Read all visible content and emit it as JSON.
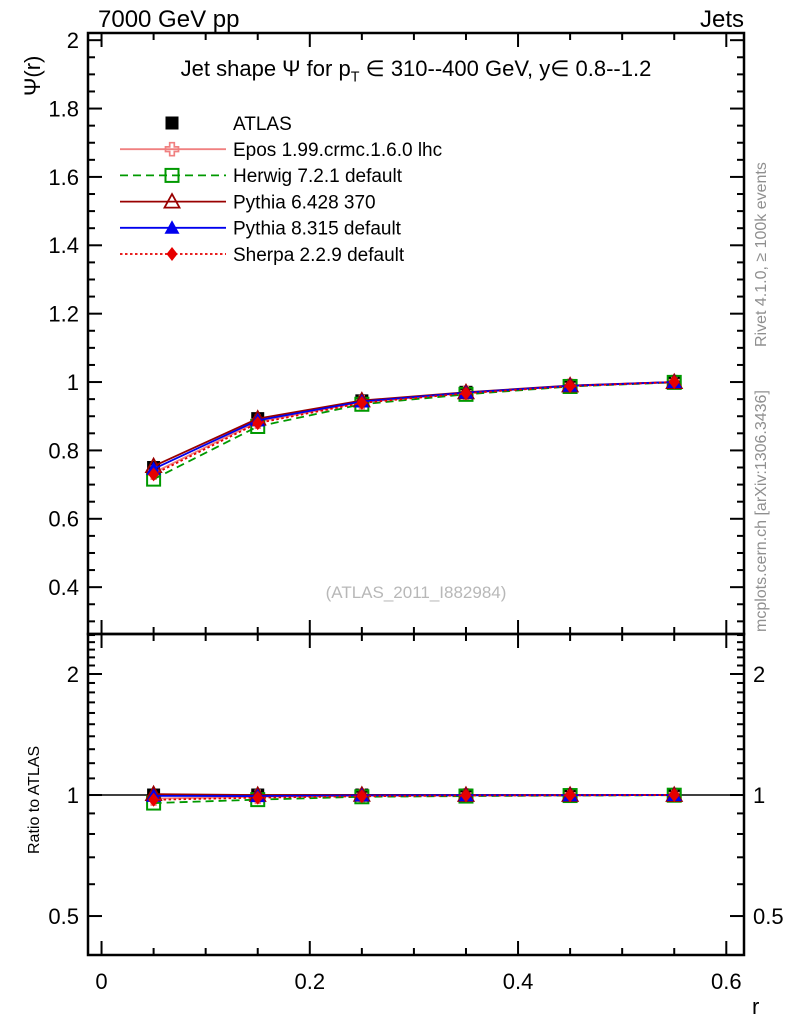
{
  "header": {
    "left": "7000 GeV pp",
    "right": "Jets"
  },
  "title": {
    "prefix": "Jet shape Ψ for p",
    "sub": "T",
    "suffix": " ∈ 310--400 GeV, y∈ 0.8--1.2"
  },
  "watermark": "(ATLAS_2011_I882984)",
  "side_notes": {
    "top": "Rivet 4.1.0, ≥ 100k events",
    "bottom": "mcplots.cern.ch [arXiv:1306.3436]"
  },
  "chart_data": {
    "type": "line",
    "title": "Jet shape Ψ for pT ∈ 310--400 GeV, y ∈ 0.8--1.2",
    "xlabel": "r",
    "ylabel": "Ψ(r)",
    "ratio_ylabel": "Ratio to ATLAS",
    "legend_position": "top-left",
    "grid": false,
    "x": [
      0.05,
      0.15,
      0.25,
      0.35,
      0.45,
      0.55
    ],
    "xlim": [
      -0.013,
      0.617
    ],
    "main_ylim": [
      0.263,
      2.021
    ],
    "main_yscale": "linear",
    "ratio_ylim": [
      0.4,
      2.515
    ],
    "ratio_yscale": "log",
    "ratio_reference": 1,
    "x_ticks": {
      "major": [
        0,
        0.2,
        0.4,
        0.6
      ],
      "labels": [
        "0",
        "0.2",
        "0.4",
        "0.6"
      ],
      "minor_step": 0.05,
      "minor_range": [
        0.05,
        0.6
      ]
    },
    "main_yticks": {
      "major": [
        0.4,
        0.6,
        0.8,
        1.0,
        1.2,
        1.4,
        1.6,
        1.8,
        2.0
      ],
      "labels": [
        "0.4",
        "0.6",
        "0.8",
        "1",
        "1.2",
        "1.4",
        "1.6",
        "1.8",
        "2"
      ],
      "minor_step": 0.05,
      "minor_range": [
        0.3,
        2.0
      ]
    },
    "ratio_yticks": {
      "major": [
        0.5,
        1,
        2
      ],
      "labels": [
        "0.5",
        "1",
        "2"
      ],
      "minor": [
        0.4,
        0.6,
        0.7,
        0.8,
        0.9,
        1.1,
        1.2,
        1.3,
        1.4,
        1.5,
        1.6,
        1.7,
        1.8,
        1.9,
        2.1,
        2.2,
        2.3,
        2.4,
        2.5
      ]
    },
    "series": [
      {
        "name": "ATLAS",
        "color": "#000000",
        "marker": "square-filled",
        "line": "none",
        "values": [
          0.75,
          0.893,
          0.945,
          0.97,
          0.99,
          1.0
        ],
        "ratio": [
          1.0,
          1.0,
          1.0,
          1.0,
          1.0,
          1.0
        ]
      },
      {
        "name": "Epos 1.99.crmc.1.6.0 lhc",
        "color": "#f08080",
        "marker": "cross-open",
        "line": "solid",
        "values": [
          0.735,
          0.884,
          0.941,
          0.968,
          0.989,
          1.0
        ],
        "ratio": [
          0.98,
          0.99,
          0.996,
          0.998,
          0.999,
          1.0
        ]
      },
      {
        "name": "Herwig 7.2.1 default",
        "color": "#009900",
        "marker": "square-open",
        "line": "dashed",
        "values": [
          0.716,
          0.87,
          0.935,
          0.964,
          0.987,
          0.999
        ],
        "ratio": [
          0.955,
          0.974,
          0.99,
          0.994,
          0.997,
          0.999
        ]
      },
      {
        "name": "Pythia 6.428 370",
        "color": "#990000",
        "marker": "triangle-open",
        "line": "solid",
        "values": [
          0.754,
          0.893,
          0.946,
          0.97,
          0.99,
          1.0
        ],
        "ratio": [
          1.005,
          1.0,
          1.001,
          1.0,
          1.0,
          1.0
        ]
      },
      {
        "name": "Pythia 8.315 default",
        "color": "#0000ee",
        "marker": "triangle-filled",
        "line": "solid",
        "values": [
          0.746,
          0.888,
          0.943,
          0.969,
          0.989,
          1.0
        ],
        "ratio": [
          0.995,
          0.994,
          0.998,
          0.999,
          0.999,
          1.0
        ]
      },
      {
        "name": "Sherpa 2.2.9 default",
        "color": "#e60000",
        "marker": "diamond-filled",
        "line": "dotted",
        "values": [
          0.73,
          0.88,
          0.939,
          0.967,
          0.988,
          1.0
        ],
        "ratio": [
          0.973,
          0.985,
          0.993,
          0.997,
          0.998,
          1.0
        ]
      }
    ]
  }
}
